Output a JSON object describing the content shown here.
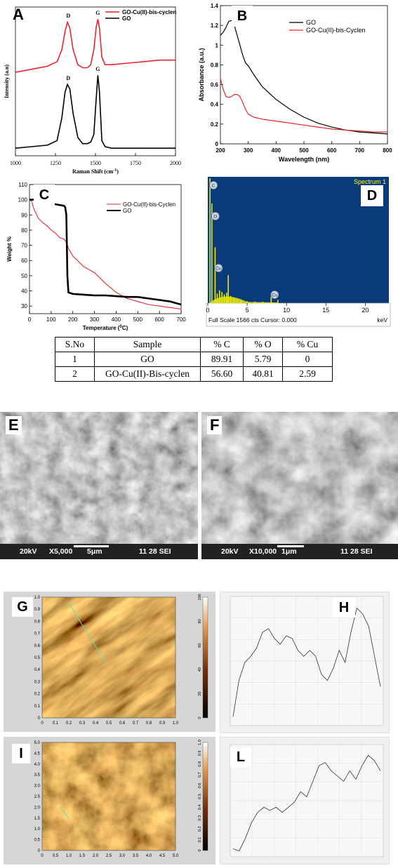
{
  "panels": {
    "A": "A",
    "B": "B",
    "C": "C",
    "D": "D",
    "E": "E",
    "F": "F",
    "G": "G",
    "H": "H",
    "I": "I",
    "L": "L"
  },
  "chart_data": [
    {
      "id": "A",
      "type": "line",
      "xlabel": "Raman Shift (cm",
      "xlabel_sup": "-1",
      "xlabel_end": ")",
      "ylabel": "Intensity (a.u)",
      "xlim": [
        1000,
        2000
      ],
      "xticks": [
        "1000",
        "1250",
        "1500",
        "1750",
        "2000"
      ],
      "peak_labels": [
        "D",
        "G",
        "D",
        "G"
      ],
      "peak_positions": [
        1330,
        1515,
        1330,
        1515
      ],
      "series": [
        {
          "name": "GO-Cu(II)-bis-cyclen",
          "color": "#e8262d",
          "x": [
            1000,
            1100,
            1200,
            1260,
            1290,
            1310,
            1325,
            1340,
            1360,
            1390,
            1420,
            1450,
            1470,
            1490,
            1505,
            1515,
            1525,
            1540,
            1560,
            1600,
            1700,
            1800,
            1900,
            2000
          ],
          "y": [
            0.55,
            0.57,
            0.59,
            0.62,
            0.7,
            0.82,
            0.88,
            0.84,
            0.7,
            0.6,
            0.58,
            0.58,
            0.6,
            0.7,
            0.85,
            0.9,
            0.84,
            0.65,
            0.6,
            0.6,
            0.61,
            0.62,
            0.63,
            0.63
          ]
        },
        {
          "name": "GO",
          "color": "#000000",
          "x": [
            1000,
            1100,
            1200,
            1260,
            1290,
            1310,
            1325,
            1340,
            1360,
            1390,
            1420,
            1450,
            1470,
            1490,
            1505,
            1515,
            1525,
            1540,
            1560,
            1600,
            1700,
            1800,
            1900,
            2000
          ],
          "y": [
            0.05,
            0.06,
            0.07,
            0.1,
            0.25,
            0.42,
            0.47,
            0.44,
            0.28,
            0.12,
            0.08,
            0.08,
            0.09,
            0.14,
            0.38,
            0.53,
            0.42,
            0.1,
            0.06,
            0.05,
            0.05,
            0.05,
            0.05,
            0.05
          ]
        }
      ]
    },
    {
      "id": "B",
      "type": "line",
      "xlabel": "Wavelength (nm)",
      "ylabel": "Absorbance (a.u.)",
      "xlim": [
        200,
        800
      ],
      "ylim": [
        0,
        1.4
      ],
      "xticks": [
        200,
        300,
        400,
        500,
        600,
        700,
        800
      ],
      "yticks": [
        0.0,
        0.2,
        0.4,
        0.6,
        0.8,
        1.0,
        1.2,
        1.4
      ],
      "series": [
        {
          "name": "GO",
          "color": "#000000",
          "x": [
            200,
            210,
            220,
            230,
            240,
            250,
            260,
            270,
            280,
            290,
            300,
            320,
            350,
            400,
            450,
            500,
            550,
            600,
            650,
            700,
            750,
            800
          ],
          "y": [
            1.1,
            1.13,
            1.18,
            1.24,
            1.25,
            1.2,
            1.1,
            1.0,
            0.9,
            0.82,
            0.79,
            0.7,
            0.58,
            0.45,
            0.35,
            0.27,
            0.21,
            0.17,
            0.14,
            0.12,
            0.11,
            0.1
          ]
        },
        {
          "name": "GO-Cu(II)-bis-Cyclen",
          "color": "#e8262d",
          "x": [
            200,
            210,
            220,
            230,
            240,
            250,
            260,
            270,
            280,
            290,
            300,
            320,
            350,
            400,
            450,
            500,
            550,
            600,
            650,
            700,
            750,
            800
          ],
          "y": [
            0.66,
            0.55,
            0.48,
            0.47,
            0.48,
            0.5,
            0.5,
            0.48,
            0.42,
            0.35,
            0.3,
            0.27,
            0.25,
            0.23,
            0.21,
            0.19,
            0.17,
            0.15,
            0.14,
            0.13,
            0.12,
            0.12
          ]
        }
      ]
    },
    {
      "id": "C",
      "type": "line",
      "xlabel": "Temperature (",
      "xlabel_sup": "0",
      "xlabel_end": "C)",
      "ylabel": "Weight %",
      "xlim": [
        0,
        700
      ],
      "ylim": [
        25,
        110
      ],
      "xticks": [
        0,
        100,
        200,
        300,
        400,
        500,
        600,
        700
      ],
      "yticks": [
        30,
        40,
        50,
        60,
        70,
        80,
        90,
        100,
        110
      ],
      "series": [
        {
          "name": "GO-Cu(II)-bis-Cyclen",
          "color": "#e8262d",
          "x": [
            0,
            10,
            20,
            40,
            60,
            80,
            100,
            120,
            140,
            160,
            170,
            180,
            200,
            250,
            300,
            350,
            400,
            450,
            500,
            550,
            600,
            650,
            700
          ],
          "y": [
            100,
            99,
            94,
            88,
            85,
            83,
            80,
            78,
            75,
            74,
            72,
            68,
            63,
            56,
            52,
            45,
            39,
            35,
            33,
            31,
            30,
            29,
            28
          ]
        },
        {
          "name": "GO",
          "color": "#000000",
          "x": [
            0,
            20,
            40,
            60,
            80,
            100,
            120,
            140,
            160,
            165,
            170,
            175,
            180,
            200,
            250,
            300,
            350,
            400,
            450,
            500,
            550,
            600,
            650,
            700
          ],
          "y": [
            100,
            100,
            100,
            99.5,
            98.5,
            97.5,
            97,
            96.5,
            96,
            95,
            90,
            50,
            39,
            38,
            37.5,
            37,
            37,
            36.5,
            36,
            36,
            35,
            34,
            33,
            31
          ]
        }
      ]
    },
    {
      "id": "D",
      "type": "bar",
      "title": "Spectrum 1",
      "footer": "Full Scale 1566 cts Cursor: 0.000",
      "unit": "keV",
      "xlim": [
        0,
        23
      ],
      "xticks": [
        0,
        5,
        10,
        15,
        20
      ],
      "peak_labels": [
        "C",
        "O",
        "Cu",
        "Cu"
      ],
      "peak_kev": [
        0.28,
        0.52,
        0.93,
        8.05
      ],
      "x": [
        0.28,
        0.52,
        0.93,
        1.2,
        1.5,
        1.8,
        2.1,
        2.4,
        2.6,
        2.9,
        3.3,
        3.7,
        4.2,
        5.0,
        6.0,
        7.0,
        8.05,
        8.9
      ],
      "values": [
        1566,
        1250,
        700,
        120,
        160,
        140,
        110,
        130,
        350,
        90,
        60,
        45,
        35,
        25,
        20,
        18,
        80,
        40
      ]
    }
  ],
  "table": {
    "headers": [
      "S.No",
      "Sample",
      "% C",
      "% O",
      "% Cu"
    ],
    "rows": [
      [
        "1",
        "GO",
        "89.91",
        "5.79",
        "0"
      ],
      [
        "2",
        "GO-Cu(II)-Bis-cyclen",
        "56.60",
        "40.81",
        "2.59"
      ]
    ]
  },
  "sem": {
    "E": {
      "kv": "20kV",
      "mag": "X5,000",
      "scale": "5μm",
      "info": "11 28 SEI"
    },
    "F": {
      "kv": "20kV",
      "mag": "X10,000",
      "scale": "1μm",
      "info": "11 28 SEI"
    }
  },
  "afm": {
    "G": {
      "xticks": [
        "0",
        "0.1",
        "0.2",
        "0.3",
        "0.4",
        "0.5",
        "0.6",
        "0.7",
        "0.8",
        "0.9",
        "1.0"
      ],
      "yticks": [
        "0",
        "0.1",
        "0.2",
        "0.3",
        "0.4",
        "0.5",
        "0.6",
        "0.7",
        "0.8",
        "0.9",
        "1.0"
      ],
      "cbar": [
        "0",
        "20",
        "40",
        "60",
        "80",
        "100"
      ]
    },
    "I": {
      "xticks": [
        "0",
        "0.5",
        "1.0",
        "1.5",
        "2.0",
        "2.5",
        "3.0",
        "3.5",
        "4.0",
        "4.5",
        "5.0"
      ],
      "yticks": [
        "0",
        "0.5",
        "1.0",
        "1.5",
        "2.0",
        "2.5",
        "3.0",
        "3.5",
        "4.0",
        "4.5",
        "5.0"
      ],
      "cbar": [
        "0",
        "0.1",
        "0.2",
        "0.3",
        "0.4",
        "0.5",
        "0.6",
        "0.7",
        "0.8",
        "0.9",
        "1.0"
      ]
    }
  },
  "profiles": {
    "H": [
      0.05,
      0.35,
      0.5,
      0.55,
      0.62,
      0.75,
      0.78,
      0.7,
      0.65,
      0.72,
      0.7,
      0.6,
      0.55,
      0.6,
      0.55,
      0.4,
      0.35,
      0.45,
      0.6,
      0.5,
      0.75,
      0.95,
      0.9,
      0.8,
      0.55,
      0.3
    ],
    "L": [
      0.05,
      0.03,
      0.15,
      0.3,
      0.4,
      0.45,
      0.42,
      0.45,
      0.4,
      0.45,
      0.5,
      0.6,
      0.55,
      0.7,
      0.85,
      0.88,
      0.8,
      0.75,
      0.7,
      0.8,
      0.72,
      0.85,
      0.95,
      0.9,
      0.8
    ]
  },
  "colors": {
    "red": "#e8262d",
    "eds_bg": "#0b3a7a",
    "eds_peak": "#e8e800",
    "eds_text": "#ffff00"
  }
}
